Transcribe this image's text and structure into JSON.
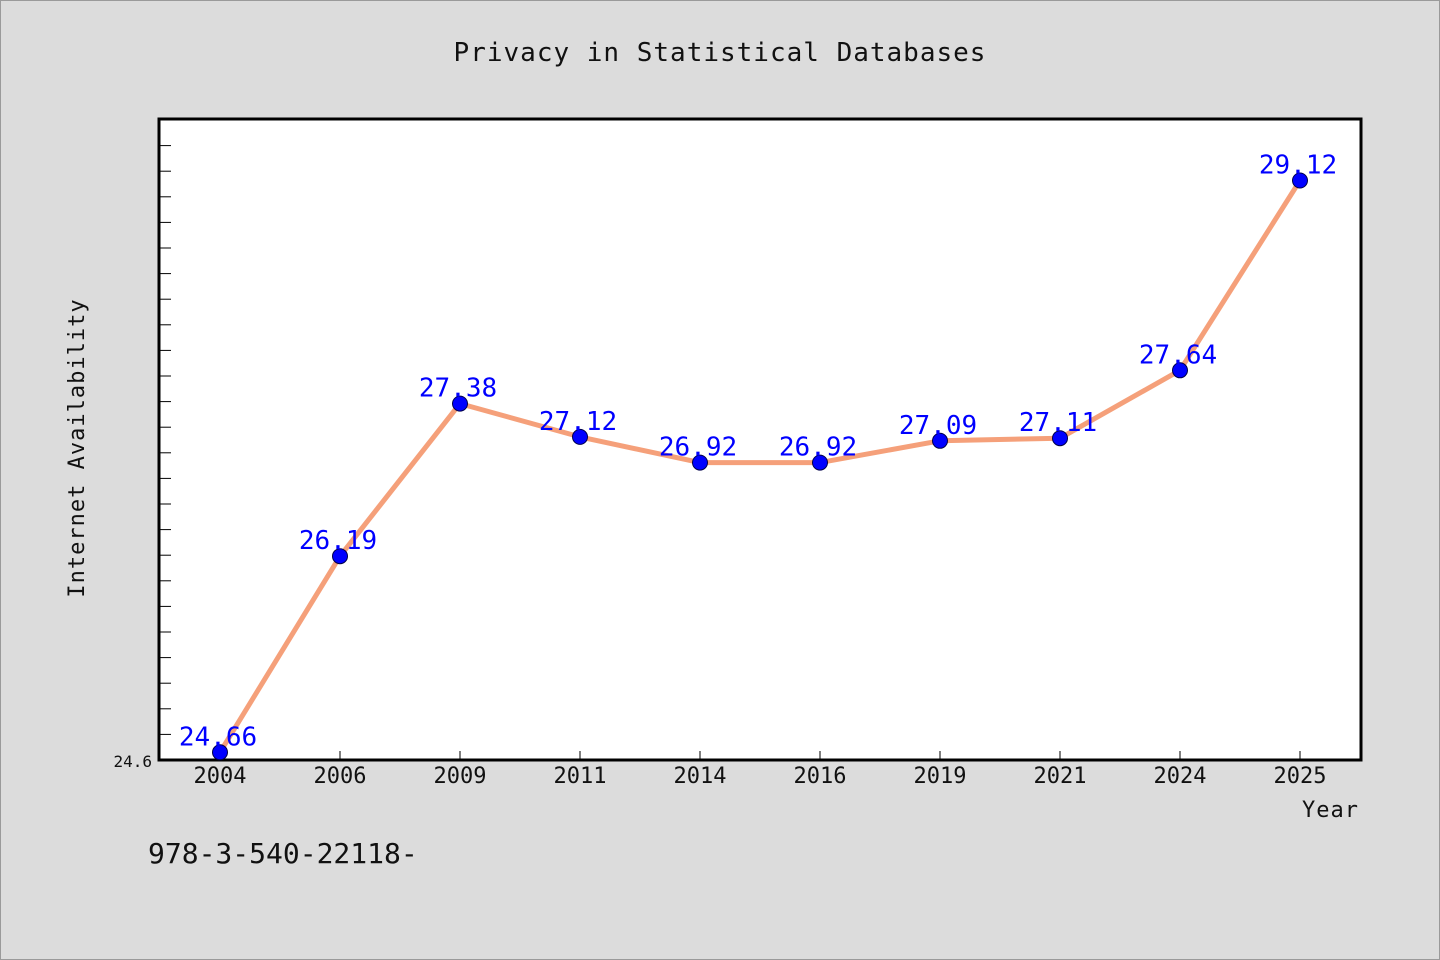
{
  "chart_data": {
    "type": "line",
    "title": "Privacy in Statistical Databases",
    "xlabel": "Year",
    "ylabel": "Internet Availability",
    "categories": [
      "2004",
      "2006",
      "2009",
      "2011",
      "2014",
      "2016",
      "2019",
      "2021",
      "2024",
      "2025"
    ],
    "series": [
      {
        "values": [
          24.66,
          26.19,
          27.38,
          27.12,
          26.92,
          26.92,
          27.09,
          27.11,
          27.64,
          29.12
        ],
        "labels": [
          "24.66",
          "26.19",
          "27.38",
          "27.12",
          "26.92",
          "26.92",
          "27.09",
          "27.11",
          "27.64",
          "29.12"
        ]
      }
    ],
    "yticks": [
      "24.6"
    ],
    "ylim": [
      24.6,
      29.6
    ],
    "grid": false,
    "colors": {
      "line": "#f5a07a",
      "marker": "#0000ff",
      "data_label": "#0000ff",
      "background": "#dcdcdc",
      "plot_background": "#ffffff"
    }
  },
  "footer": {
    "text": "978-3-540-22118-"
  }
}
